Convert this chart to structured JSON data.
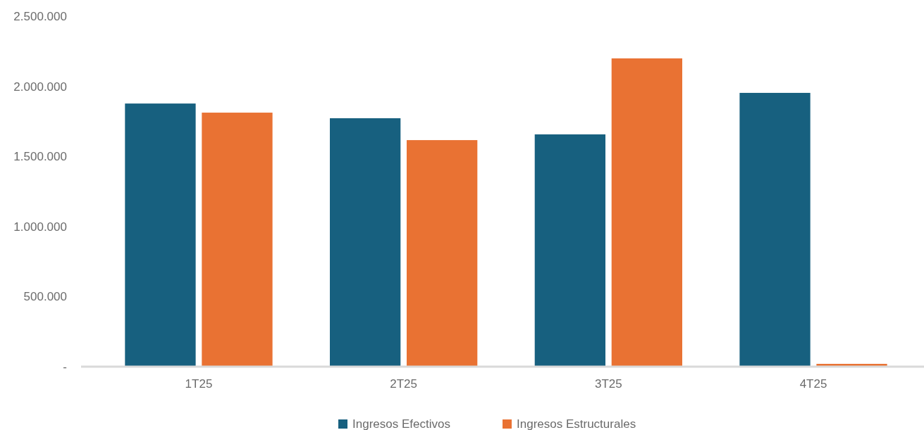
{
  "chart_data": {
    "type": "bar",
    "categories": [
      "1T25",
      "2T25",
      "3T25",
      "4T25"
    ],
    "series": [
      {
        "name": "Ingresos Efectivos",
        "color": "#17607f",
        "values": [
          1877000,
          1772000,
          1657000,
          1953000
        ]
      },
      {
        "name": "Ingresos Estructurales",
        "color": "#e97233",
        "values": [
          1812000,
          1616000,
          2199000,
          20000
        ]
      }
    ],
    "ylim": [
      0,
      2500000
    ],
    "yticks": [
      {
        "value": 0,
        "label": "-"
      },
      {
        "value": 500000,
        "label": "500.000"
      },
      {
        "value": 1000000,
        "label": "1.000.000"
      },
      {
        "value": 1500000,
        "label": "1.500.000"
      },
      {
        "value": 2000000,
        "label": "2.000.000"
      },
      {
        "value": 2500000,
        "label": "2.500.000"
      }
    ],
    "grid": false,
    "legend": "bottom"
  }
}
